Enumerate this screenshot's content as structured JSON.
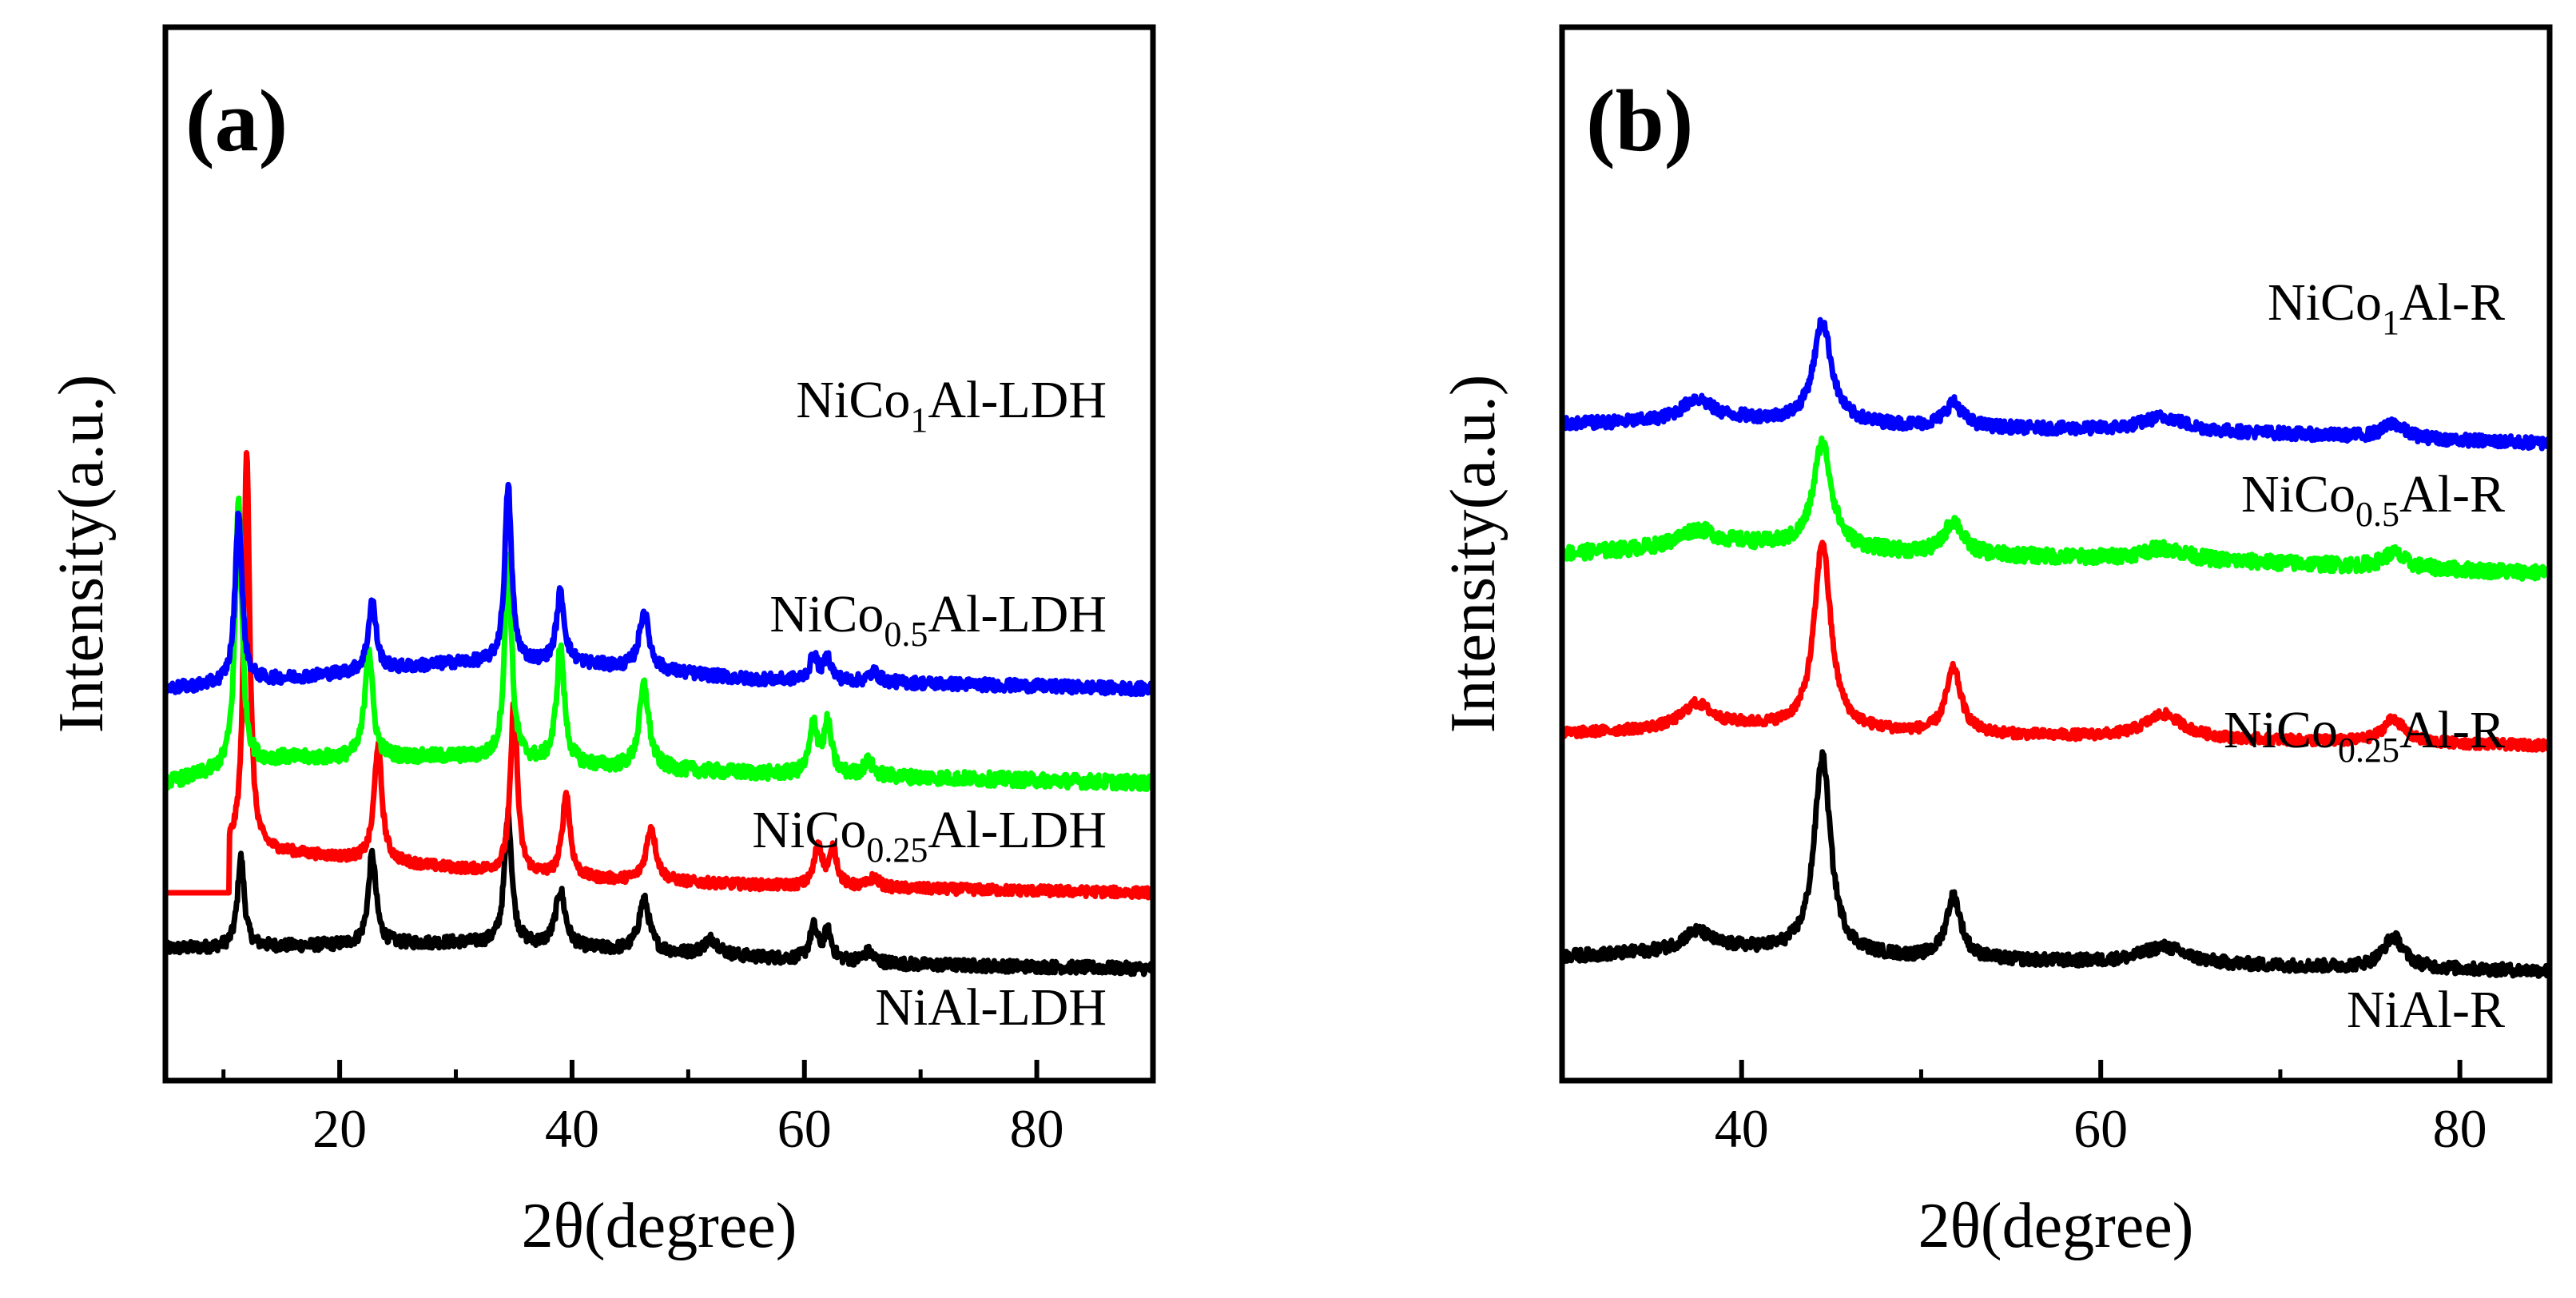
{
  "chart_data": [
    {
      "panel": "(a)",
      "type": "line",
      "title": "",
      "xlabel": "2θ(degree)",
      "ylabel": "Intensity(a.u.)",
      "xlim": [
        5,
        90
      ],
      "xticks": [
        20,
        40,
        60,
        80
      ],
      "yticks_shown": false,
      "grid": false,
      "series": [
        {
          "name": "NiAl-LDH",
          "label_main": "NiAl-LDH",
          "label_sub": "",
          "label_after": "",
          "color": "#000000",
          "offset": 0.0,
          "baseline": [
            [
              5,
              0.1
            ],
            [
              30,
              0.13
            ],
            [
              35,
              0.12
            ],
            [
              50,
              0.07
            ],
            [
              70,
              0.02
            ],
            [
              90,
              0.0
            ]
          ],
          "peaks": [
            [
              11.5,
              0.45,
              0.35
            ],
            [
              22.8,
              0.45,
              0.4
            ],
            [
              34.5,
              0.65,
              0.38
            ],
            [
              39.0,
              0.28,
              0.5
            ],
            [
              46.2,
              0.26,
              0.55
            ],
            [
              52.0,
              0.08,
              0.8
            ],
            [
              60.8,
              0.16,
              0.4
            ],
            [
              62.0,
              0.14,
              0.4
            ],
            [
              65.5,
              0.05,
              0.5
            ]
          ],
          "noise": 0.03
        },
        {
          "name": "NiCo0.25Al-LDH",
          "label_main": "NiCo",
          "label_sub": "0.25",
          "label_after": "Al-LDH",
          "color": "#ff0000",
          "offset": 0.38,
          "step_to": 12.0,
          "baseline": [
            [
              12,
              0.22
            ],
            [
              30,
              0.12
            ],
            [
              40,
              0.07
            ],
            [
              60,
              0.03
            ],
            [
              90,
              0.0
            ]
          ],
          "peaks": [
            [
              12.0,
              2.0,
              0.3
            ],
            [
              23.3,
              0.58,
              0.4
            ],
            [
              35.0,
              0.86,
              0.35
            ],
            [
              39.5,
              0.42,
              0.4
            ],
            [
              46.8,
              0.27,
              0.5
            ],
            [
              61.2,
              0.21,
              0.4
            ],
            [
              62.5,
              0.18,
              0.4
            ],
            [
              66.0,
              0.05,
              0.5
            ]
          ],
          "noise": 0.025
        },
        {
          "name": "NiCo0.5Al-LDH",
          "label_main": "NiCo",
          "label_sub": "0.5",
          "label_after": "Al-LDH",
          "color": "#00ff00",
          "offset": 0.93,
          "baseline": [
            [
              5,
              0.0
            ],
            [
              15,
              0.12
            ],
            [
              30,
              0.13
            ],
            [
              45,
              0.07
            ],
            [
              60,
              0.04
            ],
            [
              90,
              0.0
            ]
          ],
          "peaks": [
            [
              11.3,
              1.35,
              0.35
            ],
            [
              22.5,
              0.55,
              0.4
            ],
            [
              34.5,
              1.05,
              0.35
            ],
            [
              39.0,
              0.58,
              0.4
            ],
            [
              46.2,
              0.42,
              0.5
            ],
            [
              60.8,
              0.25,
              0.4
            ],
            [
              62.0,
              0.25,
              0.4
            ],
            [
              65.5,
              0.07,
              0.5
            ]
          ],
          "noise": 0.035
        },
        {
          "name": "NiCo1Al-LDH",
          "label_main": "NiCo",
          "label_sub": "1",
          "label_after": "Al-LDH",
          "color": "#0000ff",
          "offset": 1.4,
          "baseline": [
            [
              5,
              0.0
            ],
            [
              15,
              0.05
            ],
            [
              30,
              0.13
            ],
            [
              40,
              0.13
            ],
            [
              55,
              0.05
            ],
            [
              90,
              0.0
            ]
          ],
          "peaks": [
            [
              11.3,
              0.85,
              0.35
            ],
            [
              22.8,
              0.35,
              0.4
            ],
            [
              34.5,
              0.88,
              0.35
            ],
            [
              39.0,
              0.35,
              0.4
            ],
            [
              46.2,
              0.29,
              0.5
            ],
            [
              60.8,
              0.12,
              0.4
            ],
            [
              62.0,
              0.11,
              0.4
            ],
            [
              66.0,
              0.05,
              0.5
            ]
          ],
          "noise": 0.03
        }
      ]
    },
    {
      "panel": "(b)",
      "type": "line",
      "title": "",
      "xlabel": "2θ(degree)",
      "ylabel": "Intensity(a.u.)",
      "xlim": [
        30,
        85
      ],
      "xticks": [
        40,
        60,
        80
      ],
      "yticks_shown": false,
      "grid": false,
      "series": [
        {
          "name": "NiAl-R",
          "label_main": "NiAl-R",
          "label_sub": "",
          "label_after": "",
          "color": "#000000",
          "offset": 0.0,
          "baseline": [
            [
              30,
              0.06
            ],
            [
              40,
              0.09
            ],
            [
              50,
              0.05
            ],
            [
              70,
              0.02
            ],
            [
              85,
              0.0
            ]
          ],
          "peaks": [
            [
              37.5,
              0.08,
              1.0
            ],
            [
              44.5,
              0.82,
              0.55
            ],
            [
              51.8,
              0.26,
              0.5
            ],
            [
              63.5,
              0.07,
              1.5
            ],
            [
              76.3,
              0.13,
              0.7
            ]
          ],
          "noise": 0.025
        },
        {
          "name": "NiCo0.25Al-R",
          "label_main": "NiCo",
          "label_sub": "0.25",
          "label_after": "Al-R",
          "color": "#ff0000",
          "offset": 0.94,
          "baseline": [
            [
              30,
              0.05
            ],
            [
              40,
              0.08
            ],
            [
              50,
              0.05
            ],
            [
              70,
              0.02
            ],
            [
              85,
              0.0
            ]
          ],
          "peaks": [
            [
              37.5,
              0.1,
              1.0
            ],
            [
              44.5,
              0.78,
              0.55
            ],
            [
              51.8,
              0.27,
              0.5
            ],
            [
              63.5,
              0.1,
              1.3
            ],
            [
              76.3,
              0.1,
              0.7
            ]
          ],
          "noise": 0.02
        },
        {
          "name": "NiCo0.5Al-R",
          "label_main": "NiCo",
          "label_sub": "0.5",
          "label_after": "Al-R",
          "color": "#00ff00",
          "offset": 1.66,
          "baseline": [
            [
              30,
              0.08
            ],
            [
              40,
              0.12
            ],
            [
              50,
              0.08
            ],
            [
              70,
              0.04
            ],
            [
              85,
              0.0
            ]
          ],
          "peaks": [
            [
              37.5,
              0.07,
              1.2
            ],
            [
              44.5,
              0.44,
              0.6
            ],
            [
              51.8,
              0.14,
              0.6
            ],
            [
              63.5,
              0.05,
              1.5
            ],
            [
              76.3,
              0.06,
              0.7
            ]
          ],
          "noise": 0.03
        },
        {
          "name": "NiCo1Al-R",
          "label_main": "NiCo",
          "label_sub": "1",
          "label_after": "Al-R",
          "color": "#0000ff",
          "offset": 2.2,
          "baseline": [
            [
              30,
              0.08
            ],
            [
              40,
              0.1
            ],
            [
              50,
              0.07
            ],
            [
              70,
              0.04
            ],
            [
              85,
              0.0
            ]
          ],
          "peaks": [
            [
              37.5,
              0.09,
              1.0
            ],
            [
              44.5,
              0.42,
              0.6
            ],
            [
              51.8,
              0.1,
              0.6
            ],
            [
              63.5,
              0.06,
              1.5
            ],
            [
              76.3,
              0.06,
              0.7
            ]
          ],
          "noise": 0.025
        }
      ]
    }
  ]
}
